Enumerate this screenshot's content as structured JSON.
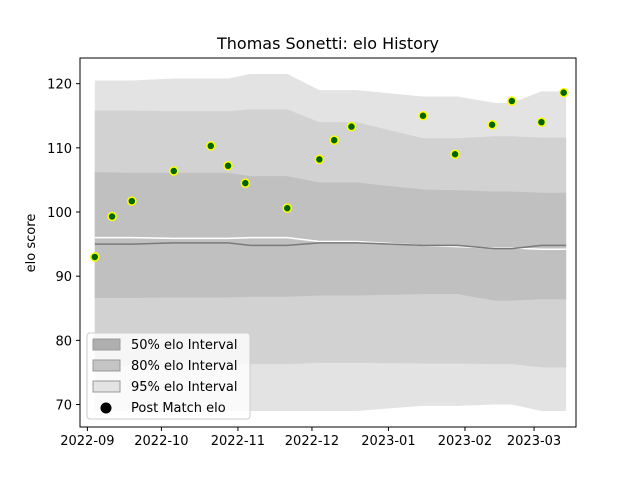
{
  "chart_data": {
    "type": "scatter",
    "title": "Thomas Sonetti: elo History",
    "xlabel": "",
    "ylabel": "elo score",
    "xlim": [
      "2022-08-29",
      "2023-03-18"
    ],
    "ylim": [
      66.5,
      124
    ],
    "x_ticks": [
      {
        "date": "2022-09-01",
        "label": "2022-09"
      },
      {
        "date": "2022-10-01",
        "label": "2022-10"
      },
      {
        "date": "2022-11-01",
        "label": "2022-11"
      },
      {
        "date": "2022-12-01",
        "label": "2022-12"
      },
      {
        "date": "2023-01-01",
        "label": "2023-01"
      },
      {
        "date": "2023-02-01",
        "label": "2023-02"
      },
      {
        "date": "2023-03-01",
        "label": "2023-03"
      }
    ],
    "y_ticks": [
      70,
      80,
      90,
      100,
      110,
      120
    ],
    "grid": false,
    "legend": {
      "placement": "lower-left",
      "entries": [
        {
          "label": "50% elo Interval",
          "color": "#afafaf"
        },
        {
          "label": "80% elo Interval",
          "color": "#c4c4c4"
        },
        {
          "label": "95% elo Interval",
          "color": "#e3e3e3"
        },
        {
          "label": "Post Match elo",
          "color": "#000000"
        }
      ]
    },
    "bands": {
      "dates": [
        "2022-09-04",
        "2022-09-19",
        "2022-10-06",
        "2022-10-28",
        "2022-11-06",
        "2022-11-21",
        "2022-12-04",
        "2022-12-12",
        "2022-12-19",
        "2023-01-15",
        "2023-01-29",
        "2023-02-13",
        "2023-02-20",
        "2023-03-04",
        "2023-03-14"
      ],
      "median": [
        95.0,
        95.0,
        95.2,
        95.2,
        94.8,
        94.8,
        95.2,
        95.2,
        95.2,
        94.8,
        94.8,
        94.3,
        94.3,
        94.8,
        94.8
      ],
      "p50_upper": [
        106.2,
        106.1,
        106.1,
        106.1,
        105.6,
        105.6,
        104.6,
        104.6,
        104.6,
        103.5,
        103.4,
        103.2,
        103.2,
        103.0,
        103.0
      ],
      "p50_lower": [
        86.6,
        86.6,
        86.7,
        86.7,
        86.8,
        86.8,
        87.0,
        87.0,
        87.0,
        87.2,
        87.2,
        86.2,
        86.2,
        86.4,
        86.4
      ],
      "p80_upper": [
        115.8,
        115.8,
        115.7,
        115.7,
        116.0,
        116.0,
        114.0,
        114.0,
        114.0,
        111.5,
        111.5,
        111.8,
        111.8,
        111.6,
        111.6
      ],
      "p80_lower": [
        76.0,
        76.0,
        76.2,
        76.2,
        76.3,
        76.3,
        76.5,
        76.5,
        76.5,
        76.4,
        76.4,
        76.3,
        76.3,
        75.8,
        75.8
      ],
      "p95_upper": [
        120.5,
        120.5,
        120.8,
        120.8,
        121.5,
        121.5,
        119.0,
        119.0,
        119.0,
        118.0,
        118.0,
        117.0,
        117.0,
        118.8,
        118.8
      ],
      "p95_lower": [
        69.0,
        69.0,
        69.0,
        69.0,
        69.0,
        69.0,
        69.0,
        69.0,
        69.0,
        69.8,
        69.8,
        70.0,
        70.0,
        69.0,
        69.0
      ],
      "white_line": [
        96.0,
        96.0,
        95.9,
        95.9,
        96.0,
        96.0,
        95.4,
        95.4,
        95.4,
        94.8,
        94.6,
        94.4,
        94.4,
        94.2,
        94.2
      ]
    },
    "series": [
      {
        "name": "Post Match elo",
        "marker_fill": "#006400",
        "marker_edge": "#ffff00",
        "points": [
          {
            "x": "2022-09-04",
            "y": 93.0
          },
          {
            "x": "2022-09-11",
            "y": 99.3
          },
          {
            "x": "2022-09-19",
            "y": 101.7
          },
          {
            "x": "2022-10-06",
            "y": 106.4
          },
          {
            "x": "2022-10-21",
            "y": 110.3
          },
          {
            "x": "2022-10-28",
            "y": 107.2
          },
          {
            "x": "2022-11-04",
            "y": 104.5
          },
          {
            "x": "2022-11-21",
            "y": 100.6
          },
          {
            "x": "2022-12-04",
            "y": 108.2
          },
          {
            "x": "2022-12-10",
            "y": 111.2
          },
          {
            "x": "2022-12-17",
            "y": 113.3
          },
          {
            "x": "2023-01-15",
            "y": 115.0
          },
          {
            "x": "2023-01-28",
            "y": 109.0
          },
          {
            "x": "2023-02-12",
            "y": 113.6
          },
          {
            "x": "2023-02-20",
            "y": 117.3
          },
          {
            "x": "2023-03-04",
            "y": 114.0
          },
          {
            "x": "2023-03-13",
            "y": 118.6
          }
        ]
      }
    ]
  }
}
